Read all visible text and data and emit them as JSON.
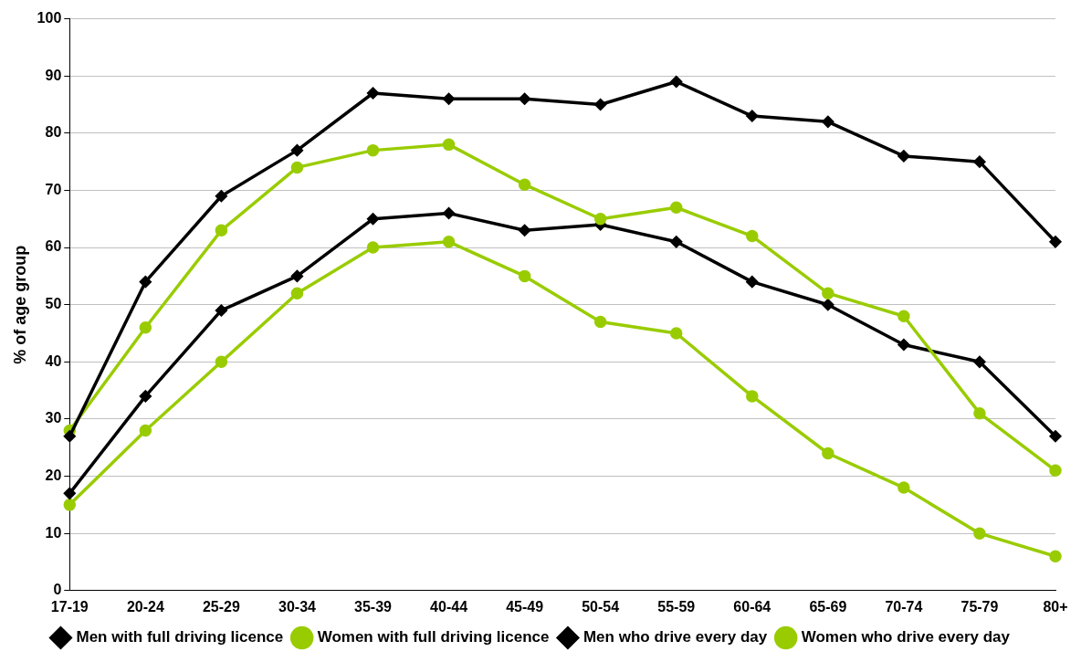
{
  "chart_data": {
    "type": "line",
    "ylabel": "% of age group",
    "categories": [
      "17-19",
      "20-24",
      "25-29",
      "30-34",
      "35-39",
      "40-44",
      "45-49",
      "50-54",
      "55-59",
      "60-64",
      "65-69",
      "70-74",
      "75-79",
      "80+"
    ],
    "series": [
      {
        "name": "Men with full driving licence",
        "color": "#000000",
        "marker": "diamond",
        "values": [
          27,
          54,
          69,
          77,
          87,
          86,
          86,
          85,
          89,
          83,
          82,
          76,
          75,
          61
        ]
      },
      {
        "name": "Women with full driving licence",
        "color": "#99cc00",
        "marker": "circle",
        "values": [
          28,
          46,
          63,
          74,
          77,
          78,
          71,
          65,
          67,
          62,
          52,
          48,
          31,
          21
        ]
      },
      {
        "name": "Men who drive every day",
        "color": "#000000",
        "marker": "diamond",
        "values": [
          17,
          34,
          49,
          55,
          65,
          66,
          63,
          64,
          61,
          54,
          50,
          43,
          40,
          27
        ]
      },
      {
        "name": "Women who drive every day",
        "color": "#99cc00",
        "marker": "circle",
        "values": [
          15,
          28,
          40,
          52,
          60,
          61,
          55,
          47,
          45,
          34,
          24,
          18,
          10,
          6
        ]
      }
    ],
    "ylim": [
      0,
      100
    ],
    "yticks": [
      0,
      10,
      20,
      30,
      40,
      50,
      60,
      70,
      80,
      90,
      100
    ],
    "grid": "y",
    "legend": "bottom"
  }
}
